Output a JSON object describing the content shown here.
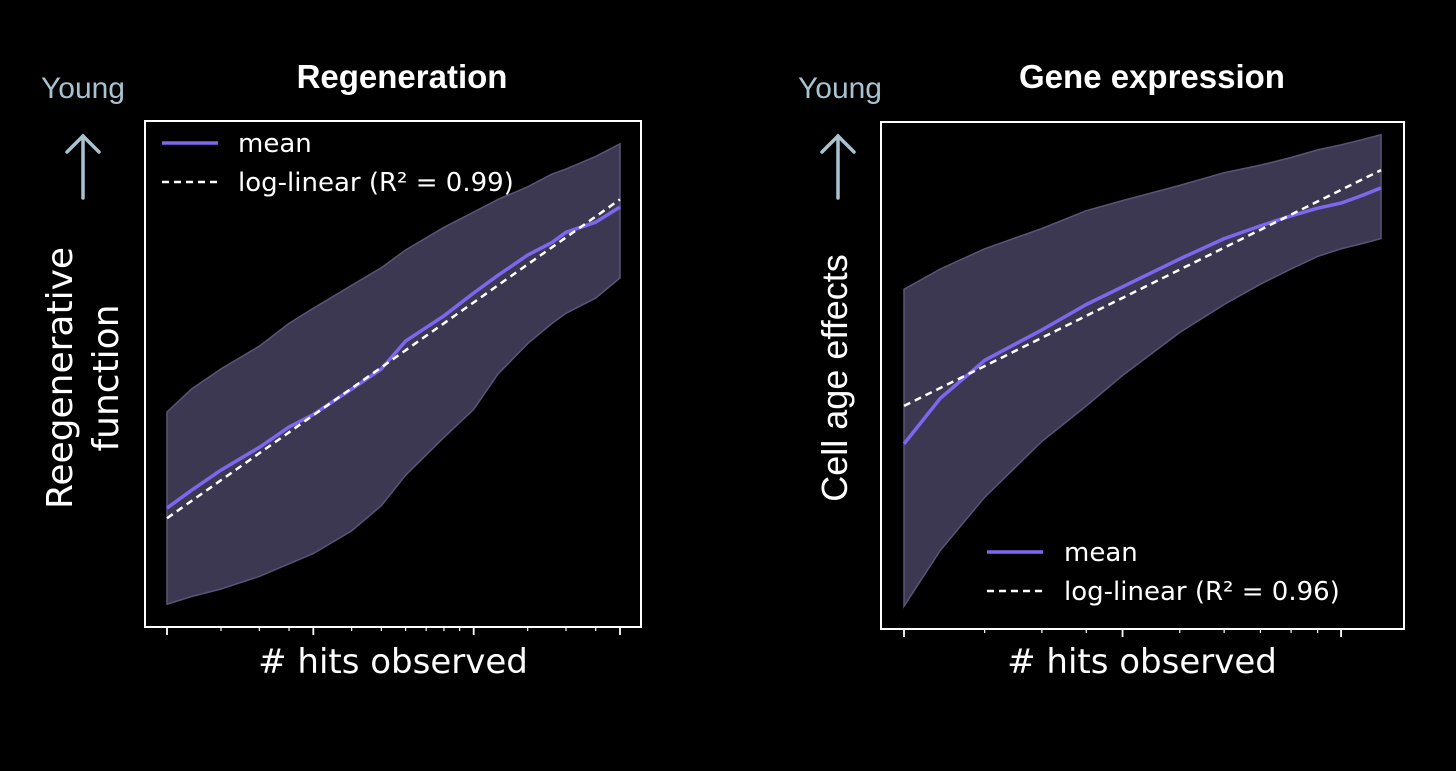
{
  "colors": {
    "background": "#000000",
    "mean_line": "#7b68ee",
    "band_fill": "#3d3852",
    "band_edge": "#5a5478",
    "fit_line": "#ffffff",
    "young_label": "#a9c2cf",
    "axis": "#ffffff"
  },
  "chart_data": [
    {
      "type": "line",
      "title": "Regeneration",
      "xlabel": "# hits observed",
      "ylabel_line1": "Reegenerative",
      "ylabel_line2": "function",
      "young_label": "Young",
      "arrow_icon": "up-arrow-icon",
      "x_scale": "log",
      "xlim": [
        1,
        30
      ],
      "ylim": [
        0,
        1
      ],
      "x_ticks_major": [
        1,
        3,
        10,
        30
      ],
      "x_ticks_minor": [
        1.5,
        2,
        2.5,
        4,
        5,
        6,
        7,
        8,
        9,
        15,
        20,
        25
      ],
      "x": [
        1,
        1.2,
        1.5,
        2,
        2.5,
        3,
        4,
        5,
        6,
        8,
        10,
        12,
        15,
        18,
        20,
        25,
        30
      ],
      "series": [
        {
          "name": "mean",
          "values": [
            0.235,
            0.27,
            0.31,
            0.355,
            0.395,
            0.42,
            0.47,
            0.51,
            0.565,
            0.615,
            0.66,
            0.695,
            0.735,
            0.76,
            0.78,
            0.8,
            0.83
          ]
        },
        {
          "name": "lower",
          "values": [
            0.045,
            0.06,
            0.075,
            0.1,
            0.125,
            0.145,
            0.19,
            0.24,
            0.3,
            0.375,
            0.43,
            0.5,
            0.56,
            0.6,
            0.62,
            0.65,
            0.69
          ]
        },
        {
          "name": "upper",
          "values": [
            0.425,
            0.47,
            0.51,
            0.555,
            0.6,
            0.63,
            0.675,
            0.71,
            0.745,
            0.79,
            0.82,
            0.845,
            0.87,
            0.895,
            0.905,
            0.93,
            0.955
          ]
        }
      ],
      "fit": {
        "name": "log-linear (R² = 0.99)",
        "start": [
          1,
          0.215
        ],
        "end": [
          30,
          0.845
        ]
      },
      "legend": {
        "placement": "top-left",
        "mean_label": "mean",
        "fit_label": "log-linear (R² = 0.99)"
      }
    },
    {
      "type": "line",
      "title": "Gene expression",
      "xlabel": "# hits observed",
      "ylabel_line1": "Cell age effects",
      "young_label": "Young",
      "arrow_icon": "up-arrow-icon",
      "x_scale": "log",
      "xlim": [
        1,
        11
      ],
      "ylim": [
        0,
        1
      ],
      "x_ticks_major": [
        1,
        3,
        9
      ],
      "x_ticks_minor": [
        1.5,
        2,
        2.5,
        4,
        5,
        6,
        7,
        8
      ],
      "x": [
        1,
        1.2,
        1.5,
        2,
        2.5,
        3,
        4,
        5,
        6,
        7,
        8,
        9,
        10,
        11
      ],
      "series": [
        {
          "name": "mean",
          "values": [
            0.365,
            0.455,
            0.53,
            0.59,
            0.64,
            0.675,
            0.73,
            0.77,
            0.795,
            0.815,
            0.83,
            0.84,
            0.855,
            0.87
          ]
        },
        {
          "name": "lower",
          "values": [
            0.045,
            0.155,
            0.26,
            0.37,
            0.44,
            0.5,
            0.585,
            0.64,
            0.68,
            0.71,
            0.735,
            0.75,
            0.76,
            0.77
          ]
        },
        {
          "name": "upper",
          "values": [
            0.67,
            0.71,
            0.75,
            0.79,
            0.825,
            0.845,
            0.875,
            0.9,
            0.915,
            0.93,
            0.945,
            0.955,
            0.965,
            0.975
          ]
        }
      ],
      "fit": {
        "name": "log-linear (R² = 0.96)",
        "start": [
          1,
          0.44
        ],
        "end": [
          11,
          0.905
        ]
      },
      "legend": {
        "placement": "bottom-right",
        "mean_label": "mean",
        "fit_label": "log-linear (R² = 0.96)"
      }
    }
  ]
}
